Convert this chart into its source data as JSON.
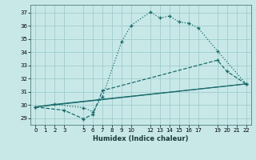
{
  "xlabel": "Humidex (Indice chaleur)",
  "background_color": "#c8e8e8",
  "grid_color": "#a0cccc",
  "line_color": "#1a6b6b",
  "xlim": [
    -0.5,
    22.5
  ],
  "ylim": [
    28.5,
    37.6
  ],
  "xticks": [
    0,
    1,
    2,
    3,
    5,
    6,
    7,
    8,
    9,
    10,
    12,
    13,
    14,
    15,
    16,
    17,
    19,
    20,
    21,
    22
  ],
  "yticks": [
    29,
    30,
    31,
    32,
    33,
    34,
    35,
    36,
    37
  ],
  "line1_x": [
    0,
    2,
    5,
    6,
    7,
    9,
    10,
    12,
    13,
    14,
    15,
    16,
    17,
    19,
    22
  ],
  "line1_y": [
    29.85,
    30.05,
    29.8,
    29.5,
    30.65,
    34.8,
    36.05,
    37.05,
    36.6,
    36.75,
    36.3,
    36.2,
    35.85,
    34.1,
    31.6
  ],
  "line2_x": [
    0,
    3,
    5,
    6,
    7,
    19,
    20,
    22
  ],
  "line2_y": [
    29.85,
    29.6,
    28.95,
    29.3,
    31.1,
    33.4,
    32.55,
    31.6
  ],
  "line3_x": [
    0,
    2,
    22
  ],
  "line3_y": [
    29.85,
    30.05,
    31.6
  ],
  "line4_x": [
    0,
    22
  ],
  "line4_y": [
    29.85,
    31.6
  ]
}
